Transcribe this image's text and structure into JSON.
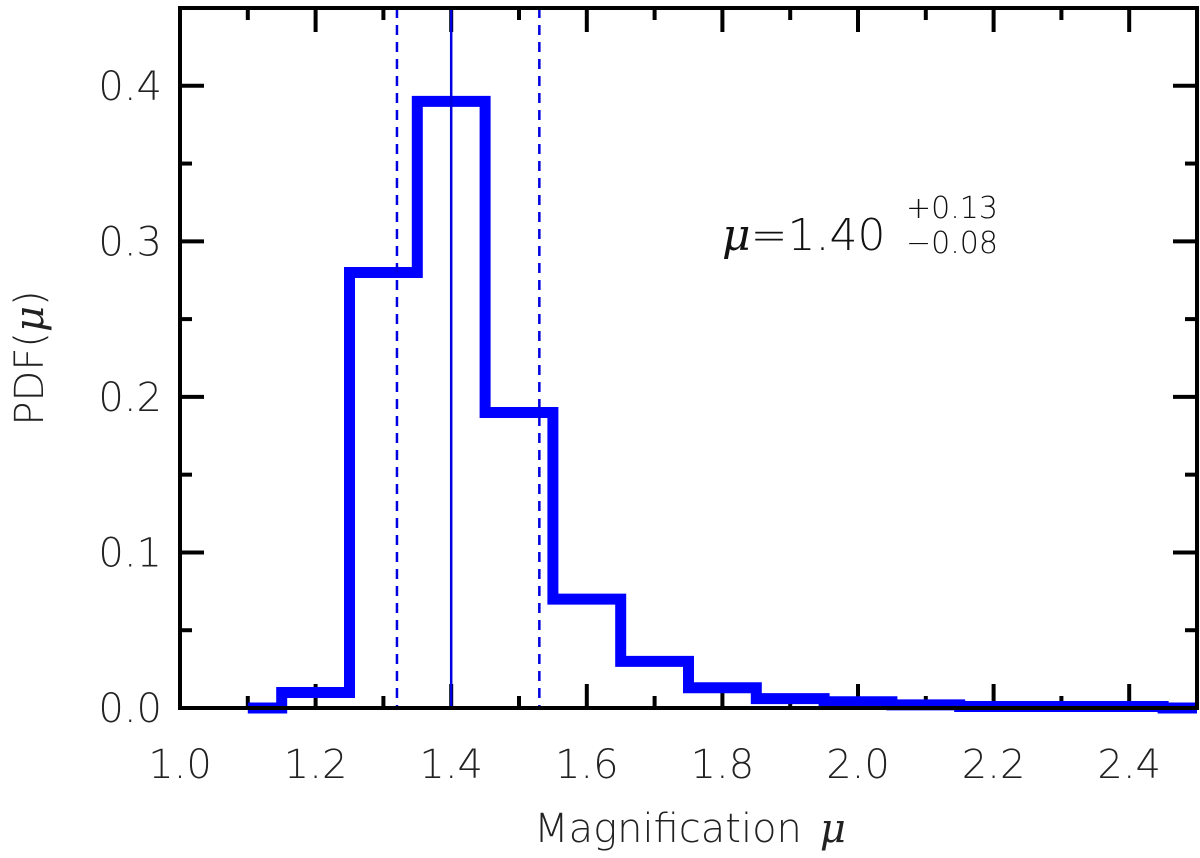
{
  "chart_data": {
    "type": "histogram",
    "xlabel": "Magnification",
    "xlabel_symbol": "μ",
    "ylabel": "PDF(",
    "ylabel_symbol": "μ",
    "ylabel_close": ")",
    "xlim": [
      1.0,
      2.5
    ],
    "ylim": [
      0.0,
      0.45
    ],
    "xticks": [
      1.0,
      1.2,
      1.4,
      1.6,
      1.8,
      2.0,
      2.2,
      2.4
    ],
    "xtick_labels": [
      "1.0",
      "1.2",
      "1.4",
      "1.6",
      "1.8",
      "2.0",
      "2.2",
      "2.4"
    ],
    "yticks": [
      0.0,
      0.1,
      0.2,
      0.3,
      0.4
    ],
    "ytick_labels": [
      "0.0",
      "0.1",
      "0.2",
      "0.3",
      "0.4"
    ],
    "bins": [
      {
        "x0": 1.1,
        "x1": 1.15,
        "y": 0.0
      },
      {
        "x0": 1.15,
        "x1": 1.25,
        "y": 0.01
      },
      {
        "x0": 1.25,
        "x1": 1.35,
        "y": 0.28
      },
      {
        "x0": 1.35,
        "x1": 1.45,
        "y": 0.39
      },
      {
        "x0": 1.45,
        "x1": 1.55,
        "y": 0.19
      },
      {
        "x0": 1.55,
        "x1": 1.65,
        "y": 0.07
      },
      {
        "x0": 1.65,
        "x1": 1.75,
        "y": 0.03
      },
      {
        "x0": 1.75,
        "x1": 1.85,
        "y": 0.013
      },
      {
        "x0": 1.85,
        "x1": 1.95,
        "y": 0.006
      },
      {
        "x0": 1.95,
        "x1": 2.05,
        "y": 0.004
      },
      {
        "x0": 2.05,
        "x1": 2.15,
        "y": 0.002
      },
      {
        "x0": 2.15,
        "x1": 2.25,
        "y": 0.001
      },
      {
        "x0": 2.25,
        "x1": 2.35,
        "y": 0.001
      },
      {
        "x0": 2.35,
        "x1": 2.45,
        "y": 0.001
      },
      {
        "x0": 2.45,
        "x1": 2.5,
        "y": 0.0
      }
    ],
    "median_line": 1.4,
    "interval_lines": [
      1.32,
      1.53
    ],
    "annotation": {
      "symbol": "μ",
      "eq": "=",
      "value": "1.40",
      "plus": "+0.13",
      "minus": "−0.08"
    },
    "colors": {
      "histogram": "#0000ff",
      "lines": "#0000e0",
      "axes": "#000000"
    },
    "grid": false
  }
}
